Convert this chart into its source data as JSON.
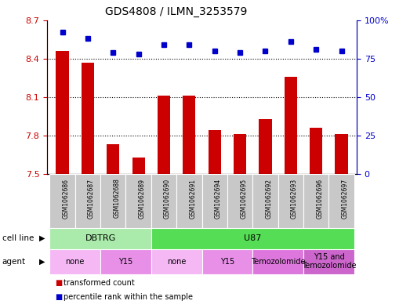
{
  "title": "GDS4808 / ILMN_3253579",
  "samples": [
    "GSM1062686",
    "GSM1062687",
    "GSM1062688",
    "GSM1062689",
    "GSM1062690",
    "GSM1062691",
    "GSM1062694",
    "GSM1062695",
    "GSM1062692",
    "GSM1062693",
    "GSM1062696",
    "GSM1062697"
  ],
  "bar_values": [
    8.46,
    8.37,
    7.73,
    7.63,
    8.11,
    8.11,
    7.84,
    7.81,
    7.93,
    8.26,
    7.86,
    7.81
  ],
  "dot_values": [
    92,
    88,
    79,
    78,
    84,
    84,
    80,
    79,
    80,
    86,
    81,
    80
  ],
  "bar_baseline": 7.5,
  "ylim_left": [
    7.5,
    8.7
  ],
  "ylim_right": [
    0,
    100
  ],
  "yticks_left": [
    7.5,
    7.8,
    8.1,
    8.4,
    8.7
  ],
  "yticks_right": [
    0,
    25,
    50,
    75,
    100
  ],
  "ytick_labels_left": [
    "7.5",
    "7.8",
    "8.1",
    "8.4",
    "8.7"
  ],
  "ytick_labels_right": [
    "0",
    "25",
    "50",
    "75",
    "100%"
  ],
  "bar_color": "#cc0000",
  "dot_color": "#0000cc",
  "cell_line_row": {
    "label": "cell line",
    "groups": [
      {
        "text": "DBTRG",
        "start": 0,
        "end": 3,
        "color": "#aaeaaa"
      },
      {
        "text": "U87",
        "start": 4,
        "end": 11,
        "color": "#55dd55"
      }
    ]
  },
  "agent_row": {
    "label": "agent",
    "groups": [
      {
        "text": "none",
        "start": 0,
        "end": 1,
        "color": "#f5b8f5"
      },
      {
        "text": "Y15",
        "start": 2,
        "end": 3,
        "color": "#e890e8"
      },
      {
        "text": "none",
        "start": 4,
        "end": 5,
        "color": "#f5b8f5"
      },
      {
        "text": "Y15",
        "start": 6,
        "end": 7,
        "color": "#e890e8"
      },
      {
        "text": "Temozolomide",
        "start": 8,
        "end": 9,
        "color": "#dd77dd"
      },
      {
        "text": "Y15 and\nTemozolomide",
        "start": 10,
        "end": 11,
        "color": "#cc66cc"
      }
    ]
  },
  "legend_items": [
    {
      "color": "#cc0000",
      "label": "transformed count"
    },
    {
      "color": "#0000cc",
      "label": "percentile rank within the sample"
    }
  ],
  "grid_lines": [
    7.8,
    8.1,
    8.4
  ],
  "bar_gray": "#c8c8c8",
  "tick_color_left": "#cc0000",
  "tick_color_right": "#0000cc"
}
